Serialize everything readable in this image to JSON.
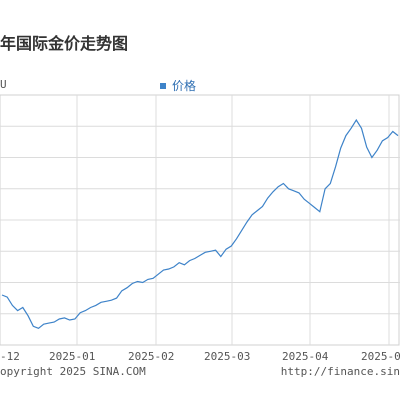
{
  "chart_data": {
    "type": "line",
    "title": "年国际金价走势图",
    "unit_label": "U",
    "legend": [
      {
        "name": "价格"
      }
    ],
    "x_ticks": [
      "-12",
      "2025-01",
      "2025-02",
      "2025-03",
      "2025-04",
      "2025-0"
    ],
    "x": [
      "2024-12-05",
      "2024-12-07",
      "2024-12-09",
      "2024-12-11",
      "2024-12-13",
      "2024-12-15",
      "2024-12-17",
      "2024-12-19",
      "2024-12-21",
      "2024-12-23",
      "2024-12-25",
      "2024-12-27",
      "2024-12-29",
      "2024-12-31",
      "2025-01-02",
      "2025-01-04",
      "2025-01-06",
      "2025-01-08",
      "2025-01-10",
      "2025-01-12",
      "2025-01-14",
      "2025-01-16",
      "2025-01-18",
      "2025-01-20",
      "2025-01-22",
      "2025-01-24",
      "2025-01-26",
      "2025-01-28",
      "2025-01-30",
      "2025-02-01",
      "2025-02-03",
      "2025-02-05",
      "2025-02-07",
      "2025-02-09",
      "2025-02-11",
      "2025-02-13",
      "2025-02-15",
      "2025-02-17",
      "2025-02-19",
      "2025-02-21",
      "2025-02-23",
      "2025-02-25",
      "2025-02-27",
      "2025-03-01",
      "2025-03-03",
      "2025-03-05",
      "2025-03-07",
      "2025-03-09",
      "2025-03-11",
      "2025-03-13",
      "2025-03-15",
      "2025-03-17",
      "2025-03-19",
      "2025-03-21",
      "2025-03-23",
      "2025-03-25",
      "2025-03-27",
      "2025-03-29",
      "2025-03-31",
      "2025-04-02",
      "2025-04-04",
      "2025-04-06",
      "2025-04-08",
      "2025-04-10",
      "2025-04-12",
      "2025-04-14",
      "2025-04-16",
      "2025-04-18",
      "2025-04-20",
      "2025-04-22",
      "2025-04-24",
      "2025-04-26",
      "2025-04-28",
      "2025-04-30",
      "2025-05-02",
      "2025-05-04",
      "2025-05-06"
    ],
    "series": [
      {
        "name": "价格",
        "values": [
          48,
          46,
          38,
          33,
          36,
          28,
          18,
          16,
          20,
          21,
          22,
          25,
          26,
          24,
          25,
          31,
          33,
          36,
          38,
          41,
          42,
          43,
          45,
          52,
          55,
          59,
          61,
          60,
          63,
          64,
          68,
          72,
          73,
          75,
          79,
          77,
          81,
          83,
          86,
          89,
          90,
          91,
          85,
          92,
          95,
          102,
          110,
          118,
          125,
          129,
          133,
          141,
          147,
          152,
          155,
          150,
          148,
          146,
          140,
          136,
          132,
          128,
          150,
          155,
          171,
          189,
          201,
          208,
          216,
          208,
          190,
          180,
          187,
          196,
          199,
          205,
          201
        ],
        "color": "#3e83c9"
      }
    ],
    "grid": true,
    "footer_left": "opyright 2025 SINA.COM",
    "footer_right": "http://finance.sin"
  }
}
